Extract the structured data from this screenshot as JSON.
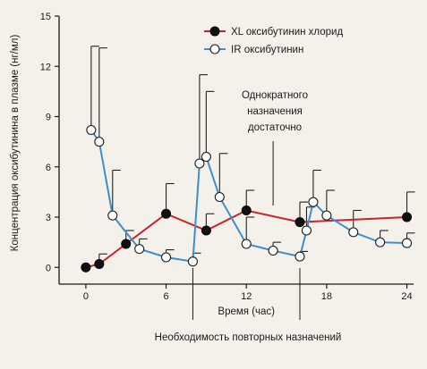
{
  "chart_data": {
    "type": "line",
    "xlabel": "Время (час)",
    "ylabel": "Концентрация оксибутинина в плазме (нг/мл)",
    "xlim": [
      -2,
      24.5
    ],
    "ylim": [
      -1,
      15
    ],
    "xticks": [
      0,
      6,
      12,
      18,
      24
    ],
    "yticks": [
      0,
      3,
      6,
      9,
      12,
      15
    ],
    "grid": false,
    "legend_position": "top-right",
    "colors": {
      "xl": "#c8232c",
      "ir": "#3b8fd0",
      "marker_xl": "#111111",
      "marker_ir": "#ffffff",
      "error": "#222222"
    },
    "series": [
      {
        "name": "XL оксибутинин хлорид",
        "key": "xl",
        "x": [
          0,
          1,
          3,
          6,
          9,
          12,
          16,
          24
        ],
        "y": [
          0,
          0.2,
          1.4,
          3.2,
          2.2,
          3.4,
          2.7,
          3.0
        ],
        "err": [
          0,
          0.6,
          0.8,
          1.8,
          1.0,
          1.2,
          1.2,
          1.5
        ]
      },
      {
        "name": "IR оксибутинин",
        "key": "ir",
        "x": [
          0.4,
          1,
          2,
          4,
          6,
          8,
          8.5,
          9,
          10,
          12,
          14,
          16,
          16.5,
          17,
          18,
          20,
          22,
          24
        ],
        "y": [
          8.2,
          7.5,
          3.1,
          1.1,
          0.6,
          0.35,
          6.2,
          6.6,
          4.2,
          1.4,
          1.0,
          0.65,
          2.2,
          3.9,
          3.1,
          2.1,
          1.5,
          1.45
        ],
        "err": [
          5.0,
          5.6,
          2.7,
          0.6,
          0.45,
          0.5,
          5.3,
          3.9,
          2.6,
          1.6,
          0.5,
          0.3,
          1.4,
          1.9,
          1.5,
          1.3,
          0.7,
          0.6
        ]
      }
    ],
    "annotations": [
      {
        "text": [
          "Однократного",
          "назначения",
          "достаточно"
        ],
        "at_x": 14
      },
      {
        "text": [
          "Необходимость повторных назначений"
        ],
        "at_x": [
          8,
          16
        ]
      }
    ]
  }
}
